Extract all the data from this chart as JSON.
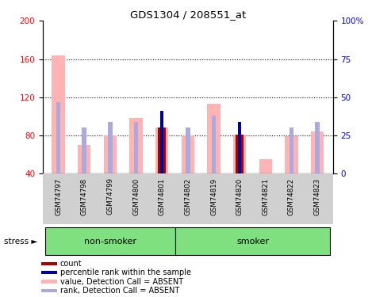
{
  "title": "GDS1304 / 208551_at",
  "samples": [
    "GSM74797",
    "GSM74798",
    "GSM74799",
    "GSM74800",
    "GSM74801",
    "GSM74802",
    "GSM74819",
    "GSM74820",
    "GSM74821",
    "GSM74822",
    "GSM74823"
  ],
  "value_absent": [
    164,
    70,
    80,
    98,
    88,
    80,
    113,
    81,
    55,
    79,
    84
  ],
  "rank_absent_pct": [
    47,
    30,
    34,
    34,
    null,
    30,
    38,
    null,
    null,
    30,
    34
  ],
  "count": [
    null,
    null,
    null,
    null,
    88,
    null,
    null,
    81,
    null,
    null,
    null
  ],
  "percentile_rank_pct": [
    null,
    null,
    null,
    null,
    41,
    null,
    null,
    34,
    null,
    null,
    null
  ],
  "ylim_left": [
    40,
    200
  ],
  "ylim_right": [
    0,
    100
  ],
  "yticks_left": [
    40,
    80,
    120,
    160,
    200
  ],
  "yticks_right": [
    0,
    25,
    50,
    75,
    100
  ],
  "ytick_labels_right": [
    "0",
    "25",
    "50",
    "75",
    "100%"
  ],
  "color_value_absent": "#ffb3b3",
  "color_rank_absent": "#aaaadd",
  "color_count": "#aa0000",
  "color_percentile": "#000099",
  "nonsmoker_count": 5,
  "legend_items": [
    {
      "label": "count",
      "color": "#aa0000"
    },
    {
      "label": "percentile rank within the sample",
      "color": "#000099"
    },
    {
      "label": "value, Detection Call = ABSENT",
      "color": "#ffb3b3"
    },
    {
      "label": "rank, Detection Call = ABSENT",
      "color": "#aaaadd"
    }
  ]
}
